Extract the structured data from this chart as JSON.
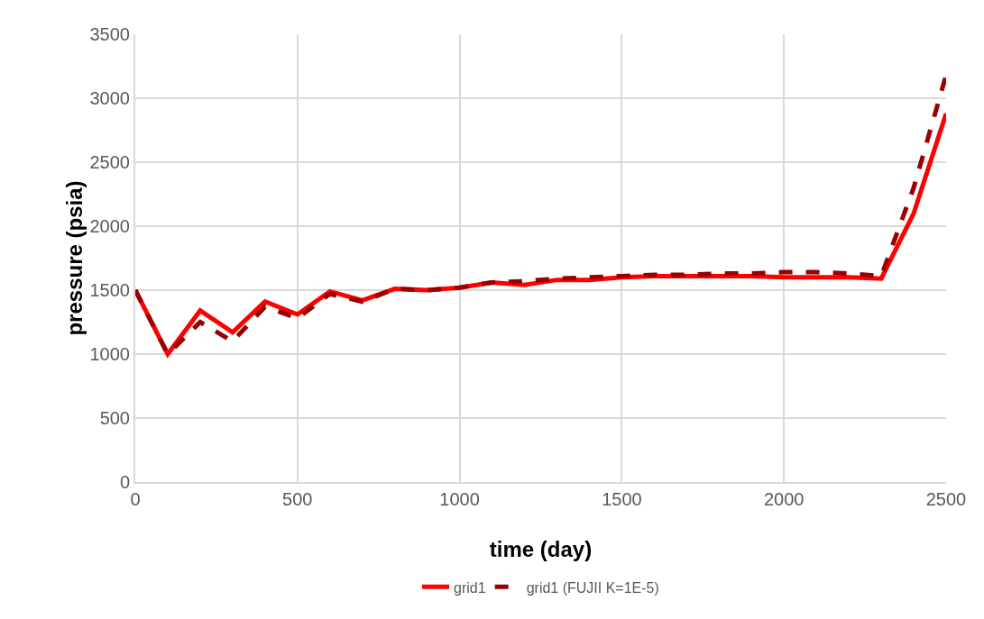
{
  "chart_data": {
    "type": "line",
    "xlabel": "time (day)",
    "ylabel": "pressure (psia)",
    "x": [
      0,
      100,
      200,
      300,
      400,
      500,
      600,
      700,
      800,
      900,
      1000,
      1100,
      1200,
      1300,
      1400,
      1500,
      1600,
      1700,
      1800,
      1900,
      2000,
      2100,
      2200,
      2300,
      2400,
      2500
    ],
    "series": [
      {
        "name": "grid1",
        "color": "#ff0000",
        "line_style": "solid",
        "values": [
          1500,
          1000,
          1340,
          1170,
          1410,
          1310,
          1490,
          1420,
          1510,
          1500,
          1520,
          1560,
          1540,
          1580,
          1580,
          1600,
          1610,
          1610,
          1610,
          1610,
          1600,
          1600,
          1600,
          1590,
          2100,
          2880
        ]
      },
      {
        "name": "grid1 (FUJII K=1E-5)",
        "color": "#990000",
        "line_style": "dashed",
        "values": [
          1500,
          1000,
          1250,
          1100,
          1370,
          1280,
          1470,
          1410,
          1510,
          1500,
          1520,
          1560,
          1570,
          1590,
          1600,
          1610,
          1620,
          1620,
          1630,
          1630,
          1640,
          1640,
          1630,
          1610,
          2300,
          3180
        ]
      }
    ],
    "xlim": [
      0,
      2500
    ],
    "xticks": [
      0,
      500,
      1000,
      1500,
      2000,
      2500
    ],
    "ylim": [
      0,
      3500
    ],
    "yticks": [
      0,
      500,
      1000,
      1500,
      2000,
      2500,
      3000,
      3500
    ],
    "grid": true,
    "legend": "bottom",
    "marker": "none"
  }
}
